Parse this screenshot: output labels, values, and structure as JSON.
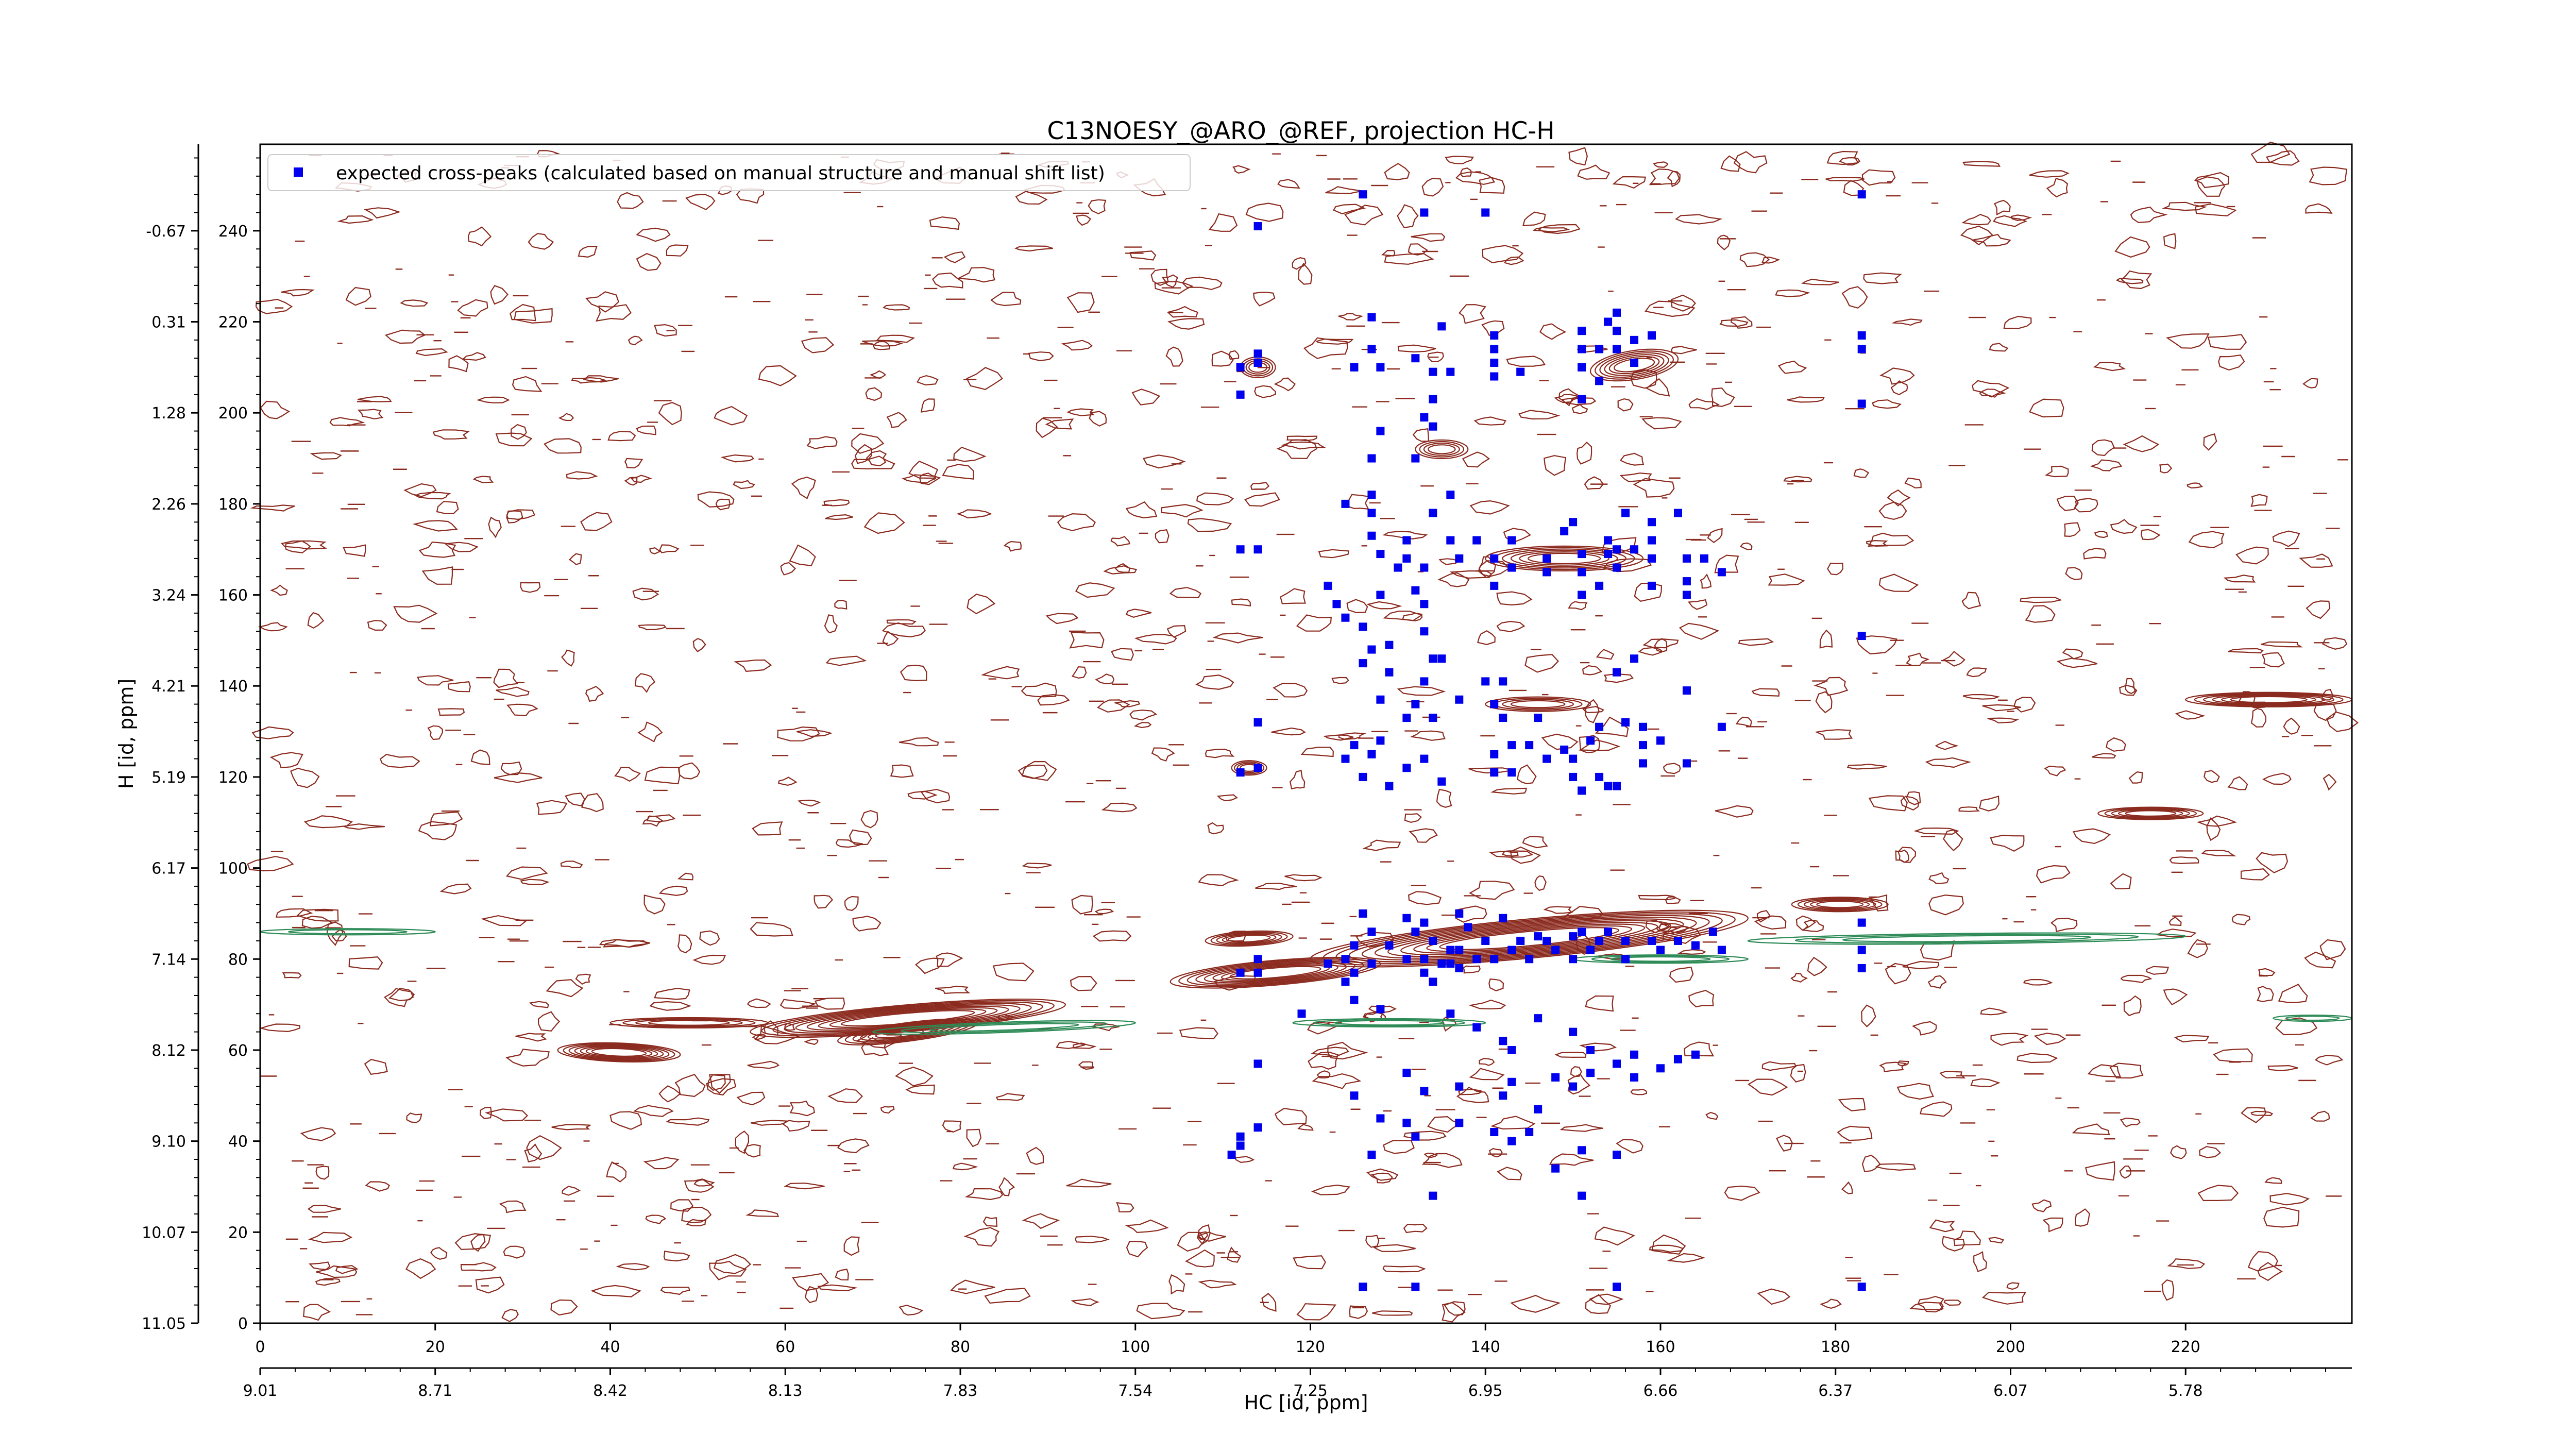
{
  "chart_data": {
    "type": "scatter",
    "title": "C13NOESY_@ARO_@REF, projection HC-H",
    "xlabel": "HC [id, ppm]",
    "ylabel": "H [id, ppm]",
    "xlim": [
      0,
      239
    ],
    "ylim": [
      0,
      259
    ],
    "x_ticks": [
      0,
      20,
      40,
      60,
      80,
      100,
      120,
      140,
      160,
      180,
      200,
      220
    ],
    "y_ticks": [
      0,
      20,
      40,
      60,
      80,
      100,
      120,
      140,
      160,
      180,
      200,
      220,
      240
    ],
    "x_ppm_ticks": [
      {
        "pos": 0,
        "label": "9.01"
      },
      {
        "pos": 20,
        "label": "8.71"
      },
      {
        "pos": 40,
        "label": "8.42"
      },
      {
        "pos": 60,
        "label": "8.13"
      },
      {
        "pos": 80,
        "label": "7.83"
      },
      {
        "pos": 100,
        "label": "7.54"
      },
      {
        "pos": 120,
        "label": "7.25"
      },
      {
        "pos": 140,
        "label": "6.95"
      },
      {
        "pos": 160,
        "label": "6.66"
      },
      {
        "pos": 180,
        "label": "6.37"
      },
      {
        "pos": 200,
        "label": "6.07"
      },
      {
        "pos": 220,
        "label": "5.78"
      }
    ],
    "y_ppm_ticks": [
      {
        "pos": 0,
        "label": "11.05"
      },
      {
        "pos": 20,
        "label": "10.07"
      },
      {
        "pos": 40,
        "label": "9.10"
      },
      {
        "pos": 60,
        "label": "8.12"
      },
      {
        "pos": 80,
        "label": "7.14"
      },
      {
        "pos": 100,
        "label": "6.17"
      },
      {
        "pos": 120,
        "label": "5.19"
      },
      {
        "pos": 140,
        "label": "4.21"
      },
      {
        "pos": 160,
        "label": "3.24"
      },
      {
        "pos": 180,
        "label": "2.26"
      },
      {
        "pos": 200,
        "label": "1.28"
      },
      {
        "pos": 220,
        "label": "0.31"
      },
      {
        "pos": 240,
        "label": "-0.67"
      }
    ],
    "legend": {
      "label": "expected cross-peaks (calculated based on manual structure and manual shift list)",
      "placement": "top-left"
    },
    "grid": false,
    "colors": {
      "positive_contour": "#8b2a1e",
      "negative_contour": "#2e8b57",
      "peak_marker": "#0000ee"
    },
    "series": [
      {
        "kind": "markers",
        "values": [
          [
            114.0,
            241.0
          ],
          [
            126.0,
            248.0
          ],
          [
            133.0,
            244.0
          ],
          [
            140.0,
            244.0
          ],
          [
            183.0,
            248.0
          ],
          [
            114.0,
            213.0
          ],
          [
            114.0,
            211.0
          ],
          [
            112.0,
            210.0
          ],
          [
            112.0,
            204.0
          ],
          [
            125.0,
            210.0
          ],
          [
            127.0,
            221.0
          ],
          [
            127.0,
            214.0
          ],
          [
            128.0,
            210.0
          ],
          [
            132.0,
            212.0
          ],
          [
            134.0,
            209.0
          ],
          [
            136.0,
            209.0
          ],
          [
            134.0,
            203.0
          ],
          [
            133.0,
            199.0
          ],
          [
            134.0,
            197.0
          ],
          [
            128.0,
            196.0
          ],
          [
            135.0,
            219.0
          ],
          [
            141.0,
            217.0
          ],
          [
            141.0,
            214.0
          ],
          [
            141.0,
            211.0
          ],
          [
            141.0,
            208.0
          ],
          [
            144.0,
            209.0
          ],
          [
            151.0,
            218.0
          ],
          [
            151.0,
            214.0
          ],
          [
            151.0,
            210.0
          ],
          [
            151.0,
            203.0
          ],
          [
            153.0,
            214.0
          ],
          [
            153.0,
            207.0
          ],
          [
            154.0,
            220.0
          ],
          [
            155.0,
            222.0
          ],
          [
            155.0,
            218.0
          ],
          [
            155.0,
            214.0
          ],
          [
            157.0,
            216.0
          ],
          [
            157.0,
            211.0
          ],
          [
            159.0,
            217.0
          ],
          [
            183.0,
            217.0
          ],
          [
            183.0,
            214.0
          ],
          [
            183.0,
            202.0
          ],
          [
            127.0,
            190.0
          ],
          [
            132.0,
            190.0
          ],
          [
            124.0,
            180.0
          ],
          [
            127.0,
            182.0
          ],
          [
            127.0,
            178.0
          ],
          [
            127.0,
            173.0
          ],
          [
            128.0,
            169.0
          ],
          [
            131.0,
            172.0
          ],
          [
            131.0,
            168.0
          ],
          [
            133.0,
            166.0
          ],
          [
            132.0,
            161.0
          ],
          [
            133.0,
            158.0
          ],
          [
            130.0,
            166.0
          ],
          [
            128.0,
            160.0
          ],
          [
            134.0,
            178.0
          ],
          [
            136.0,
            182.0
          ],
          [
            136.0,
            172.0
          ],
          [
            137.0,
            168.0
          ],
          [
            139.0,
            172.0
          ],
          [
            141.0,
            162.0
          ],
          [
            141.0,
            168.0
          ],
          [
            143.0,
            166.0
          ],
          [
            143.0,
            172.0
          ],
          [
            147.0,
            168.0
          ],
          [
            147.0,
            165.0
          ],
          [
            149.0,
            174.0
          ],
          [
            150.0,
            176.0
          ],
          [
            151.0,
            169.0
          ],
          [
            151.0,
            165.0
          ],
          [
            151.0,
            160.0
          ],
          [
            153.0,
            162.0
          ],
          [
            154.0,
            169.0
          ],
          [
            154.0,
            172.0
          ],
          [
            155.0,
            170.0
          ],
          [
            155.0,
            166.0
          ],
          [
            156.0,
            178.0
          ],
          [
            157.0,
            170.0
          ],
          [
            159.0,
            176.0
          ],
          [
            159.0,
            172.0
          ],
          [
            159.0,
            168.0
          ],
          [
            159.0,
            162.0
          ],
          [
            162.0,
            178.0
          ],
          [
            163.0,
            168.0
          ],
          [
            163.0,
            163.0
          ],
          [
            163.0,
            160.0
          ],
          [
            165.0,
            168.0
          ],
          [
            167.0,
            165.0
          ],
          [
            114.0,
            170.0
          ],
          [
            112.0,
            170.0
          ],
          [
            122.0,
            162.0
          ],
          [
            123.0,
            158.0
          ],
          [
            124.0,
            155.0
          ],
          [
            126.0,
            153.0
          ],
          [
            127.0,
            148.0
          ],
          [
            126.0,
            145.0
          ],
          [
            129.0,
            149.0
          ],
          [
            129.0,
            143.0
          ],
          [
            128.0,
            137.0
          ],
          [
            132.0,
            136.0
          ],
          [
            133.0,
            152.0
          ],
          [
            134.0,
            146.0
          ],
          [
            135.0,
            146.0
          ],
          [
            133.0,
            141.0
          ],
          [
            137.0,
            137.0
          ],
          [
            134.0,
            133.0
          ],
          [
            131.0,
            133.0
          ],
          [
            128.0,
            128.0
          ],
          [
            127.0,
            125.0
          ],
          [
            125.0,
            127.0
          ],
          [
            124.0,
            124.0
          ],
          [
            126.0,
            120.0
          ],
          [
            129.0,
            118.0
          ],
          [
            131.0,
            122.0
          ],
          [
            133.0,
            124.0
          ],
          [
            135.0,
            119.0
          ],
          [
            114.0,
            132.0
          ],
          [
            114.0,
            122.0
          ],
          [
            112.0,
            121.0
          ],
          [
            140.0,
            141.0
          ],
          [
            141.0,
            136.0
          ],
          [
            142.0,
            141.0
          ],
          [
            142.0,
            133.0
          ],
          [
            143.0,
            127.0
          ],
          [
            141.0,
            125.0
          ],
          [
            141.0,
            121.0
          ],
          [
            143.0,
            121.0
          ],
          [
            145.0,
            127.0
          ],
          [
            146.0,
            133.0
          ],
          [
            147.0,
            124.0
          ],
          [
            149.0,
            126.0
          ],
          [
            150.0,
            124.0
          ],
          [
            150.0,
            120.0
          ],
          [
            151.0,
            117.0
          ],
          [
            152.0,
            128.0
          ],
          [
            153.0,
            131.0
          ],
          [
            153.0,
            120.0
          ],
          [
            154.0,
            118.0
          ],
          [
            155.0,
            118.0
          ],
          [
            155.0,
            143.0
          ],
          [
            157.0,
            146.0
          ],
          [
            156.0,
            132.0
          ],
          [
            158.0,
            131.0
          ],
          [
            158.0,
            127.0
          ],
          [
            158.0,
            123.0
          ],
          [
            160.0,
            128.0
          ],
          [
            163.0,
            139.0
          ],
          [
            163.0,
            123.0
          ],
          [
            167.0,
            131.0
          ],
          [
            183.0,
            151.0
          ],
          [
            126.0,
            90.0
          ],
          [
            127.0,
            86.0
          ],
          [
            125.0,
            83.0
          ],
          [
            124.0,
            80.0
          ],
          [
            122.0,
            79.0
          ],
          [
            125.0,
            77.0
          ],
          [
            124.0,
            75.0
          ],
          [
            127.0,
            79.0
          ],
          [
            129.0,
            83.0
          ],
          [
            131.0,
            89.0
          ],
          [
            132.0,
            86.0
          ],
          [
            133.0,
            88.0
          ],
          [
            134.0,
            84.0
          ],
          [
            131.0,
            80.0
          ],
          [
            133.0,
            80.0
          ],
          [
            133.0,
            77.0
          ],
          [
            134.0,
            75.0
          ],
          [
            135.0,
            79.0
          ],
          [
            136.0,
            82.0
          ],
          [
            136.0,
            79.0
          ],
          [
            137.0,
            82.0
          ],
          [
            137.0,
            78.0
          ],
          [
            139.0,
            80.0
          ],
          [
            140.0,
            84.0
          ],
          [
            141.0,
            80.0
          ],
          [
            143.0,
            82.0
          ],
          [
            144.0,
            84.0
          ],
          [
            145.0,
            80.0
          ],
          [
            146.0,
            85.0
          ],
          [
            147.0,
            84.0
          ],
          [
            150.0,
            85.0
          ],
          [
            150.0,
            80.0
          ],
          [
            151.0,
            86.0
          ],
          [
            152.0,
            82.0
          ],
          [
            153.0,
            84.0
          ],
          [
            154.0,
            86.0
          ],
          [
            156.0,
            84.0
          ],
          [
            156.0,
            80.0
          ],
          [
            159.0,
            84.0
          ],
          [
            160.0,
            82.0
          ],
          [
            162.0,
            84.0
          ],
          [
            164.0,
            83.0
          ],
          [
            166.0,
            86.0
          ],
          [
            167.0,
            82.0
          ],
          [
            138.0,
            87.0
          ],
          [
            137.0,
            90.0
          ],
          [
            142.0,
            89.0
          ],
          [
            148.0,
            82.0
          ],
          [
            114.0,
            80.0
          ],
          [
            114.0,
            77.0
          ],
          [
            112.0,
            77.0
          ],
          [
            183.0,
            78.0
          ],
          [
            183.0,
            82.0
          ],
          [
            183.0,
            88.0
          ],
          [
            125.0,
            71.0
          ],
          [
            128.0,
            69.0
          ],
          [
            136.0,
            68.0
          ],
          [
            139.0,
            65.0
          ],
          [
            142.0,
            62.0
          ],
          [
            143.0,
            60.0
          ],
          [
            146.0,
            67.0
          ],
          [
            150.0,
            64.0
          ],
          [
            152.0,
            60.0
          ],
          [
            155.0,
            57.0
          ],
          [
            157.0,
            59.0
          ],
          [
            131.0,
            55.0
          ],
          [
            133.0,
            51.0
          ],
          [
            137.0,
            52.0
          ],
          [
            142.0,
            50.0
          ],
          [
            143.0,
            53.0
          ],
          [
            146.0,
            47.0
          ],
          [
            148.0,
            54.0
          ],
          [
            150.0,
            52.0
          ],
          [
            152.0,
            55.0
          ],
          [
            157.0,
            54.0
          ],
          [
            160.0,
            56.0
          ],
          [
            162.0,
            58.0
          ],
          [
            164.0,
            59.0
          ],
          [
            119.0,
            68.0
          ],
          [
            114.0,
            57.0
          ],
          [
            114.0,
            43.0
          ],
          [
            112.0,
            41.0
          ],
          [
            112.0,
            39.0
          ],
          [
            111.0,
            37.0
          ],
          [
            125.0,
            50.0
          ],
          [
            128.0,
            45.0
          ],
          [
            131.0,
            44.0
          ],
          [
            132.0,
            41.0
          ],
          [
            137.0,
            44.0
          ],
          [
            141.0,
            42.0
          ],
          [
            143.0,
            40.0
          ],
          [
            145.0,
            42.0
          ],
          [
            151.0,
            38.0
          ],
          [
            155.0,
            37.0
          ],
          [
            148.0,
            34.0
          ],
          [
            151.0,
            28.0
          ],
          [
            127.0,
            37.0
          ],
          [
            134.0,
            28.0
          ],
          [
            126.0,
            8.0
          ],
          [
            132.0,
            8.0
          ],
          [
            155.0,
            8.0
          ],
          [
            183.0,
            8.0
          ]
        ]
      }
    ]
  }
}
